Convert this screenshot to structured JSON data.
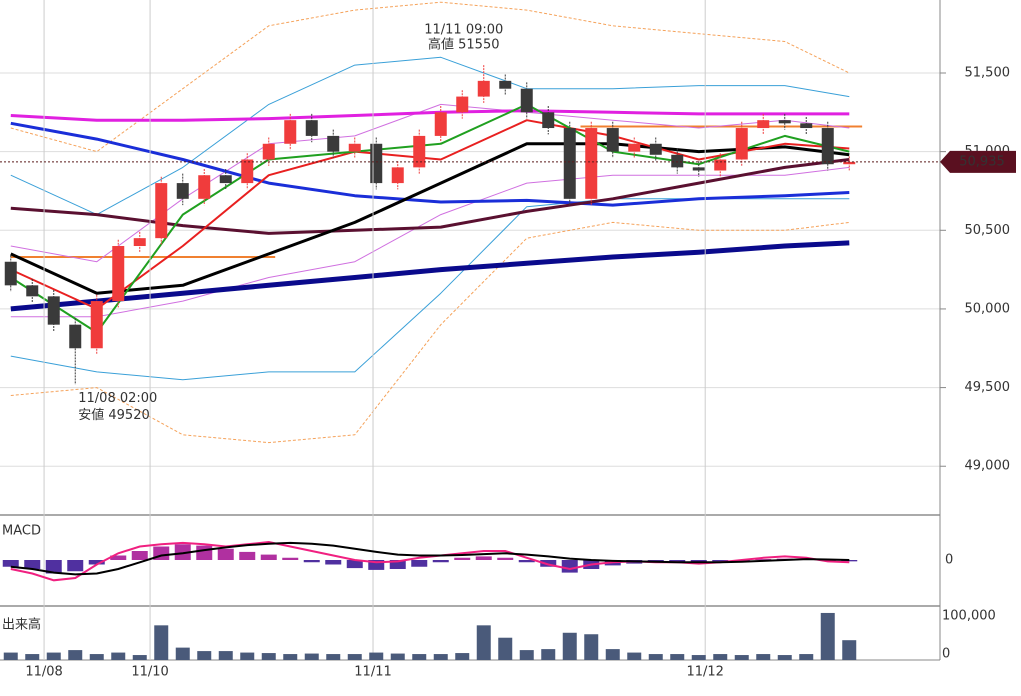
{
  "chart_data": {
    "type": "candlestick",
    "ylim": [
      48690,
      51964
    ],
    "yticks": [
      {
        "value": 49000,
        "label": "49,000"
      },
      {
        "value": 49500,
        "label": "49,500"
      },
      {
        "value": 50000,
        "label": "50,000"
      },
      {
        "value": 50500,
        "label": "50,500"
      },
      {
        "value": 51000,
        "label": "51,000"
      },
      {
        "value": 51500,
        "label": "51,500"
      }
    ],
    "xticks": [
      {
        "value": 1.55,
        "label": "11/08"
      },
      {
        "value": 6.48,
        "label": "11/10"
      },
      {
        "value": 16.85,
        "label": "11/11"
      },
      {
        "value": 32.3,
        "label": "11/12"
      }
    ],
    "up_color": "#f03c3c",
    "down_color": "#3a3a3a",
    "open": [
      50300,
      50150,
      50080,
      49900,
      49750,
      50050,
      50400,
      50450,
      50800,
      50700,
      50850,
      50800,
      50950,
      51050,
      51200,
      51100,
      51000,
      51050,
      50800,
      50900,
      51100,
      51250,
      51350,
      51450,
      51400,
      51250,
      51150,
      50700,
      51150,
      51000,
      51050,
      50980,
      50900,
      50880,
      50950,
      51150,
      51200,
      51180,
      51150,
      50920
    ],
    "high": [
      50340,
      50190,
      50120,
      49940,
      50090,
      50440,
      50490,
      50840,
      50860,
      50890,
      50890,
      50990,
      51090,
      51240,
      51240,
      51140,
      51090,
      51090,
      50940,
      51140,
      51290,
      51390,
      51550,
      51490,
      51440,
      51290,
      51190,
      51190,
      51190,
      51090,
      51090,
      51020,
      50940,
      50990,
      51190,
      51240,
      51240,
      51220,
      51190,
      50970
    ],
    "low": [
      50110,
      50040,
      49860,
      49520,
      49710,
      50010,
      50360,
      50410,
      50660,
      50660,
      50760,
      50760,
      50910,
      51010,
      51060,
      50960,
      50960,
      50760,
      50760,
      50860,
      51060,
      51210,
      51310,
      51360,
      51210,
      51110,
      50660,
      50660,
      50960,
      50960,
      50940,
      50860,
      50840,
      50840,
      50910,
      51110,
      51140,
      51110,
      50880,
      50880
    ],
    "close": [
      50150,
      50080,
      49900,
      49750,
      50050,
      50400,
      50450,
      50800,
      50700,
      50850,
      50800,
      50950,
      51050,
      51200,
      51100,
      51000,
      51050,
      50800,
      50900,
      51100,
      51250,
      51350,
      51450,
      51400,
      51250,
      51150,
      50700,
      51150,
      51000,
      51050,
      50980,
      50900,
      50880,
      50950,
      51150,
      51200,
      51180,
      51150,
      50920,
      50935
    ],
    "line_x": [
      0,
      4,
      8,
      12,
      16,
      20,
      24,
      28,
      32,
      36,
      39
    ],
    "lines": [
      {
        "color": "#f5a25a",
        "width": 1,
        "dash": true,
        "values": [
          51150,
          51000,
          51400,
          51800,
          51900,
          51950,
          51900,
          51800,
          51750,
          51700,
          51500
        ]
      },
      {
        "color": "#f5a25a",
        "width": 1,
        "dash": true,
        "values": [
          49450,
          49500,
          49200,
          49150,
          49200,
          49900,
          50450,
          50550,
          50500,
          50500,
          50550
        ]
      },
      {
        "color": "#3aa0d8",
        "width": 1,
        "values": [
          50850,
          50600,
          50900,
          51300,
          51550,
          51600,
          51400,
          51400,
          51420,
          51420,
          51350
        ]
      },
      {
        "color": "#3aa0d8",
        "width": 1,
        "values": [
          49700,
          49600,
          49550,
          49600,
          49600,
          50100,
          50650,
          50700,
          50700,
          50700,
          50700
        ]
      },
      {
        "color": "#d070e0",
        "width": 1,
        "values": [
          50400,
          50300,
          50700,
          51050,
          51100,
          51300,
          51250,
          51200,
          51150,
          51200,
          51150
        ]
      },
      {
        "color": "#d070e0",
        "width": 1,
        "values": [
          49950,
          49950,
          50050,
          50200,
          50300,
          50600,
          50800,
          50850,
          50850,
          50850,
          50900
        ]
      },
      {
        "color": "#e020e0",
        "width": 3,
        "values": [
          51230,
          51200,
          51200,
          51210,
          51230,
          51250,
          51260,
          51250,
          51240,
          51240,
          51240
        ]
      },
      {
        "color": "#1a2ed8",
        "width": 3,
        "values": [
          51180,
          51080,
          50950,
          50800,
          50720,
          50680,
          50690,
          50660,
          50700,
          50720,
          50740
        ]
      },
      {
        "color": "#0a0a8c",
        "width": 5,
        "values": [
          50000,
          50050,
          50100,
          50150,
          50200,
          50250,
          50290,
          50330,
          50360,
          50400,
          50420
        ]
      },
      {
        "color": "#5a1030",
        "width": 3,
        "values": [
          50640,
          50600,
          50530,
          50480,
          50500,
          50520,
          50620,
          50700,
          50800,
          50900,
          50950
        ]
      },
      {
        "color": "#000000",
        "width": 3,
        "values": [
          50350,
          50100,
          50150,
          50350,
          50550,
          50800,
          51050,
          51050,
          51000,
          51030,
          50980
        ]
      },
      {
        "color": "#e82020",
        "width": 2,
        "values": [
          50250,
          50000,
          50400,
          50850,
          51000,
          50950,
          51200,
          51100,
          50950,
          51050,
          51020
        ]
      },
      {
        "color": "#20a020",
        "width": 2,
        "values": [
          50200,
          49850,
          50600,
          50950,
          51000,
          51050,
          51300,
          51000,
          50920,
          51100,
          51000
        ]
      }
    ],
    "levels": [
      {
        "value": 50330,
        "from": 0,
        "to": 12.3,
        "color": "#f08030"
      },
      {
        "value": 51160,
        "from": 26.5,
        "to": 39.6,
        "color": "#f08030"
      }
    ],
    "last_price": {
      "value": 50935,
      "label": "50,935"
    },
    "high_note": [
      "11/11 09:00",
      "高値 51550"
    ],
    "low_note": [
      "11/08 02:00",
      "安値 49520"
    ],
    "macd": {
      "title": "MACD",
      "ylim": [
        -100,
        100
      ],
      "yticks": [
        0
      ],
      "histogram": [
        -15,
        -20,
        -30,
        -25,
        -10,
        10,
        20,
        30,
        35,
        32,
        25,
        18,
        12,
        5,
        -5,
        -10,
        -18,
        -22,
        -20,
        -15,
        -5,
        5,
        8,
        5,
        -5,
        -15,
        -28,
        -20,
        -12,
        -8,
        -6,
        -5,
        -4,
        -3,
        -2,
        2,
        3,
        2,
        -2,
        -3
      ],
      "macd": [
        -20,
        -30,
        -45,
        -40,
        -10,
        15,
        30,
        35,
        38,
        35,
        30,
        35,
        40,
        30,
        20,
        10,
        0,
        -5,
        -3,
        5,
        10,
        15,
        20,
        20,
        5,
        -10,
        -20,
        -10,
        -5,
        -3,
        -5,
        -5,
        -8,
        -5,
        0,
        5,
        8,
        5,
        -3,
        -5
      ],
      "signal": [
        -15,
        -20,
        -28,
        -32,
        -30,
        -20,
        -5,
        10,
        15,
        22,
        28,
        33,
        36,
        38,
        36,
        32,
        25,
        18,
        12,
        10,
        10,
        11,
        13,
        15,
        12,
        8,
        3,
        0,
        -2,
        -3,
        -4,
        -5,
        -5,
        -5,
        -4,
        -2,
        0,
        2,
        1,
        0
      ]
    },
    "volume": {
      "title": "出来高",
      "ylim": [
        0,
        105000
      ],
      "yticks": [
        0,
        {
          "value": 100000,
          "label": "100,000"
        }
      ],
      "color": "#4a5a7a",
      "values": [
        15000,
        12000,
        15000,
        20000,
        12000,
        15000,
        10000,
        70000,
        25000,
        18000,
        18000,
        15000,
        14000,
        12000,
        13000,
        12000,
        12000,
        15000,
        13000,
        12000,
        12000,
        14000,
        70000,
        45000,
        20000,
        22000,
        55000,
        52000,
        22000,
        15000,
        12000,
        12000,
        10000,
        12000,
        10000,
        12000,
        10000,
        12000,
        95000,
        40000
      ]
    }
  }
}
